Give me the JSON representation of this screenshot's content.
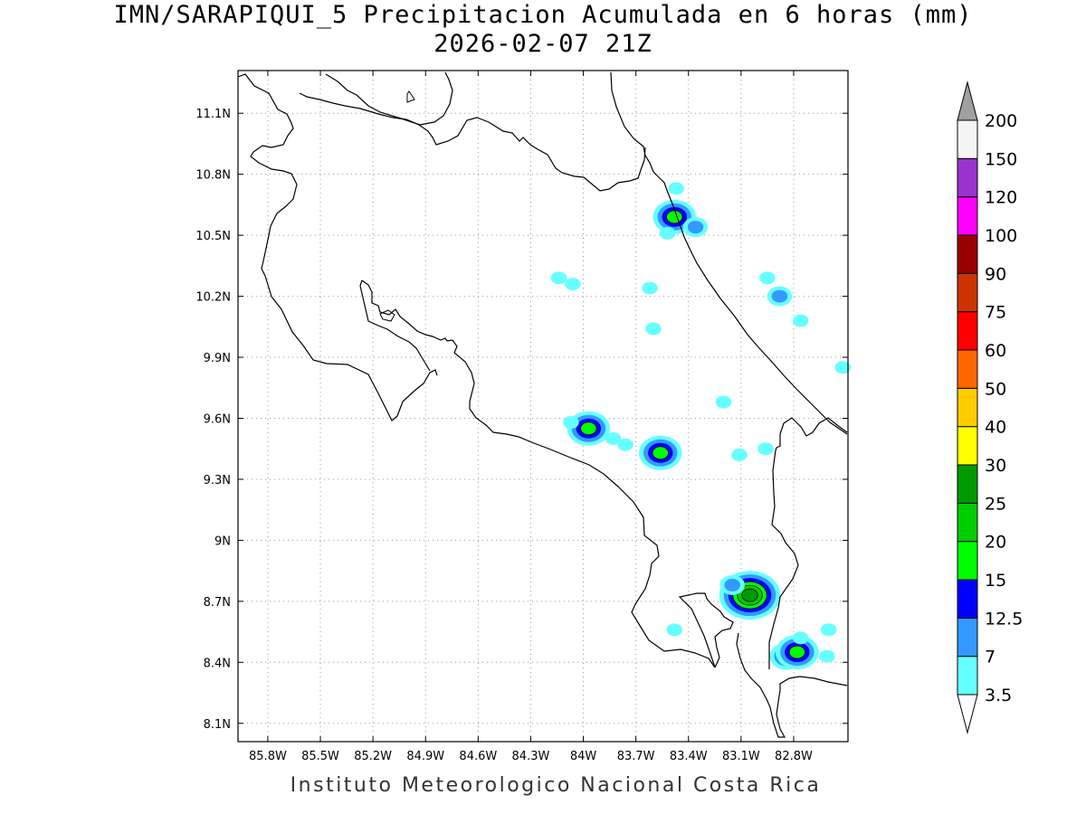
{
  "header": {
    "title_line1": "IMN/SARAPIQUI_5 Precipitacion Acumulada en 6 horas (mm)",
    "title_line2": "2026-02-07 21Z"
  },
  "map": {
    "lat_ticks": [
      "11.1N",
      "10.8N",
      "10.5N",
      "10.2N",
      "9.9N",
      "9.6N",
      "9.3N",
      "9N",
      "8.7N",
      "8.4N",
      "8.1N"
    ],
    "lat_values": [
      11.1,
      10.8,
      10.5,
      10.2,
      9.9,
      9.6,
      9.3,
      9.0,
      8.7,
      8.4,
      8.1
    ],
    "lon_ticks": [
      "85.8W",
      "85.5W",
      "85.2W",
      "84.9W",
      "84.6W",
      "84.3W",
      "84W",
      "83.7W",
      "83.4W",
      "83.1W",
      "82.8W"
    ],
    "lon_values": [
      -85.8,
      -85.5,
      -85.2,
      -84.9,
      -84.6,
      -84.3,
      -84.0,
      -83.7,
      -83.4,
      -83.1,
      -82.8
    ],
    "lon_range": [
      -85.97,
      -82.49
    ],
    "lat_range": [
      8.01,
      11.31
    ],
    "grid": "dotted",
    "coastline_color": "#000000",
    "precip_cells": [
      {
        "lon": -83.48,
        "lat": 10.59,
        "level": 4
      },
      {
        "lon": -83.36,
        "lat": 10.54,
        "level": 2
      },
      {
        "lon": -83.97,
        "lat": 9.55,
        "level": 4
      },
      {
        "lon": -83.56,
        "lat": 9.43,
        "level": 4
      },
      {
        "lon": -84.07,
        "lat": 9.58,
        "level": 1
      },
      {
        "lon": -83.76,
        "lat": 9.47,
        "level": 1
      },
      {
        "lon": -83.83,
        "lat": 9.5,
        "level": 1
      },
      {
        "lon": -83.05,
        "lat": 8.73,
        "level": 6
      },
      {
        "lon": -82.84,
        "lat": 8.43,
        "level": 3
      },
      {
        "lon": -82.78,
        "lat": 8.45,
        "level": 4
      },
      {
        "lon": -82.76,
        "lat": 8.52,
        "level": 1
      },
      {
        "lon": -82.61,
        "lat": 8.43,
        "level": 1
      },
      {
        "lon": -82.6,
        "lat": 8.56,
        "level": 1
      },
      {
        "lon": -82.95,
        "lat": 10.29,
        "level": 1
      },
      {
        "lon": -82.88,
        "lat": 10.2,
        "level": 2
      },
      {
        "lon": -82.76,
        "lat": 10.08,
        "level": 1
      },
      {
        "lon": -82.52,
        "lat": 9.85,
        "level": 1
      },
      {
        "lon": -83.62,
        "lat": 10.24,
        "level": 1
      },
      {
        "lon": -83.6,
        "lat": 10.04,
        "level": 1
      },
      {
        "lon": -83.47,
        "lat": 10.73,
        "level": 1
      },
      {
        "lon": -83.52,
        "lat": 10.51,
        "level": 1
      },
      {
        "lon": -84.14,
        "lat": 10.29,
        "level": 1
      },
      {
        "lon": -84.06,
        "lat": 10.26,
        "level": 1
      },
      {
        "lon": -83.2,
        "lat": 9.68,
        "level": 1
      },
      {
        "lon": -83.11,
        "lat": 9.42,
        "level": 1
      },
      {
        "lon": -82.96,
        "lat": 9.45,
        "level": 1
      },
      {
        "lon": -83.48,
        "lat": 8.56,
        "level": 1
      },
      {
        "lon": -83.15,
        "lat": 8.78,
        "level": 2
      }
    ]
  },
  "colorbar": {
    "labels": [
      "200",
      "150",
      "120",
      "100",
      "90",
      "75",
      "60",
      "50",
      "40",
      "30",
      "25",
      "20",
      "15",
      "12.5",
      "7",
      "3.5"
    ],
    "colors": [
      "#ffffff",
      "#66ffff",
      "#3399ff",
      "#0000ff",
      "#00ff00",
      "#00cc00",
      "#009900",
      "#ffff00",
      "#ffcc00",
      "#ff6600",
      "#ff0000",
      "#cc3300",
      "#990000",
      "#ff00ff",
      "#9933cc",
      "#f4f4f4",
      "#a0a0a0"
    ]
  },
  "footer": {
    "credit": "Instituto Meteorologico Nacional Costa Rica"
  }
}
